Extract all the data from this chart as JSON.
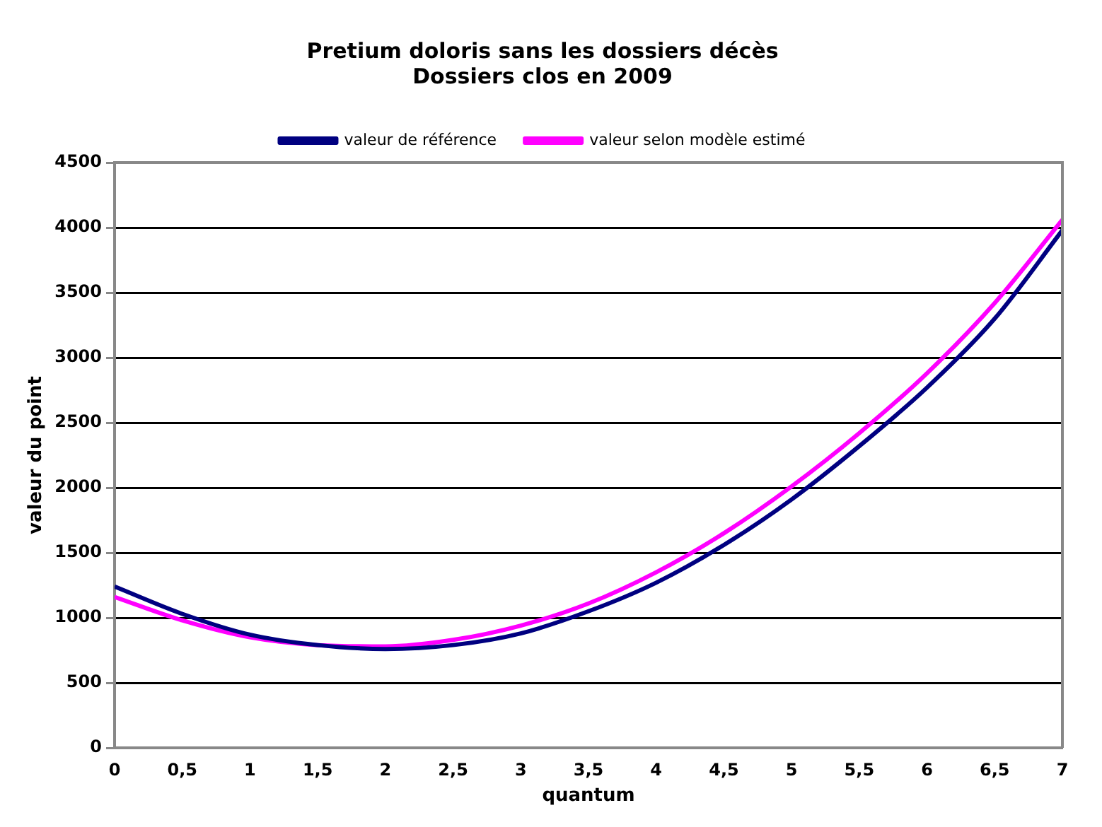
{
  "chart_data": {
    "type": "line",
    "title": "Pretium doloris sans les dossiers décès",
    "subtitle": "Dossiers clos en 2009",
    "xlabel": "quantum",
    "ylabel": "valeur du point",
    "x": [
      0,
      0.5,
      1,
      1.5,
      2,
      2.5,
      3,
      3.5,
      4,
      4.5,
      5,
      5.5,
      6,
      6.5,
      7
    ],
    "series": [
      {
        "name": "valeur de référence",
        "color": "#000080",
        "values": [
          1240,
          1030,
          870,
          790,
          760,
          790,
          880,
          1050,
          1270,
          1560,
          1910,
          2320,
          2770,
          3300,
          3980
        ]
      },
      {
        "name": "valeur selon modèle estimé",
        "color": "#ff00ff",
        "values": [
          1160,
          980,
          850,
          790,
          780,
          830,
          940,
          1110,
          1350,
          1650,
          2010,
          2420,
          2880,
          3420,
          4060
        ]
      }
    ],
    "xlim": [
      0,
      7
    ],
    "xticks": [
      0,
      {
        "value": 0.5,
        "label": "0,5"
      },
      1,
      {
        "value": 1.5,
        "label": "1,5"
      },
      2,
      {
        "value": 2.5,
        "label": "2,5"
      },
      3,
      {
        "value": 3.5,
        "label": "3,5"
      },
      4,
      {
        "value": 4.5,
        "label": "4,5"
      },
      5,
      {
        "value": 5.5,
        "label": "5,5"
      },
      6,
      {
        "value": 6.5,
        "label": "6,5"
      },
      7
    ],
    "ylim": [
      0,
      4500
    ],
    "yticks": [
      0,
      500,
      1000,
      1500,
      2000,
      2500,
      3000,
      3500,
      4000,
      4500
    ],
    "grid": "y",
    "legend": "top",
    "marker": "none",
    "line_style": "solid"
  }
}
